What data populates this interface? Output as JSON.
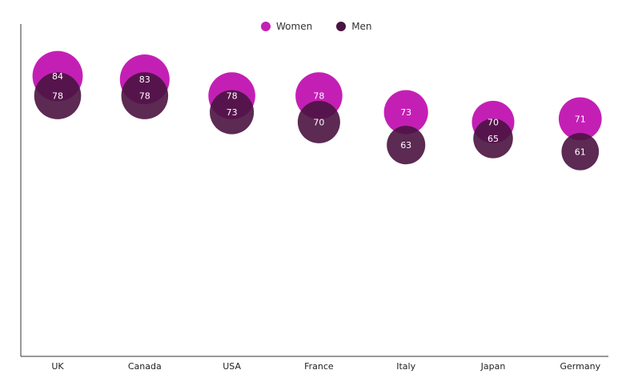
{
  "chart_data": {
    "type": "scatter",
    "categories": [
      "UK",
      "Canada",
      "USA",
      "France",
      "Italy",
      "Japan",
      "Germany"
    ],
    "series": [
      {
        "name": "Women",
        "values": [
          84,
          83,
          78,
          78,
          73,
          70,
          71
        ],
        "color": "#c41fb5"
      },
      {
        "name": "Men",
        "values": [
          78,
          78,
          73,
          70,
          63,
          65,
          61
        ],
        "color": "#4a1340"
      }
    ],
    "title": "",
    "xlabel": "",
    "ylabel": "",
    "grid": false,
    "legend": "top-center"
  }
}
